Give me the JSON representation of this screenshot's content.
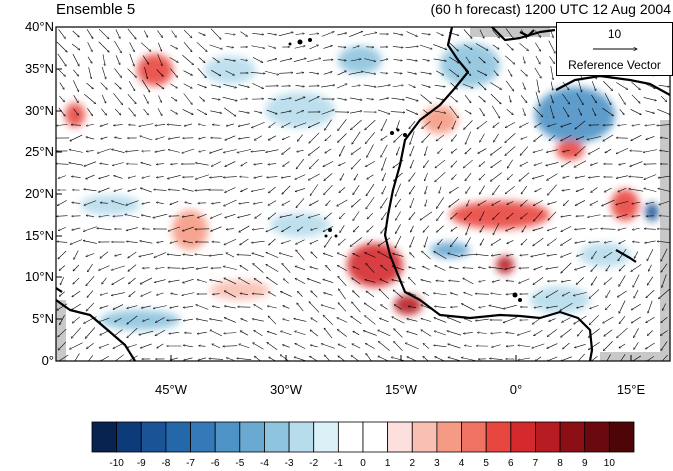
{
  "title_left": "Ensemble 5",
  "title_right": "(60 h forecast) 1200 UTC 12 Aug 2004",
  "lat_labels": [
    "40°N",
    "35°N",
    "30°N",
    "25°N",
    "20°N",
    "15°N",
    "10°N",
    "5°N",
    "0°"
  ],
  "lon_labels": [
    "45°W",
    "30°W",
    "15°W",
    "0°",
    "15°E"
  ],
  "reference_vector": {
    "magnitude": "10",
    "label": "Reference Vector"
  },
  "colorbar": {
    "labels": [
      "-10",
      "-9",
      "-8",
      "-7",
      "-6",
      "-5",
      "-4",
      "-3",
      "-2",
      "-1",
      "0",
      "1",
      "2",
      "3",
      "4",
      "5",
      "6",
      "7",
      "8",
      "9",
      "10"
    ],
    "colors": [
      "#08234f",
      "#0d3a78",
      "#1a5396",
      "#2468aa",
      "#3579b8",
      "#4d93c6",
      "#6aa9d2",
      "#8fc4de",
      "#b7dcec",
      "#dcf0f8",
      "#ffffff",
      "#ffffff",
      "#fde0dd",
      "#f9bfb2",
      "#f59b85",
      "#f07262",
      "#e8473f",
      "#d42a2d",
      "#b71c22",
      "#8c0f16",
      "#6a0a0f",
      "#4d0508"
    ]
  },
  "map": {
    "lat_range": [
      0,
      40
    ],
    "lon_range": [
      -61,
      19
    ],
    "field_colors": {
      "positive": "#e8473f",
      "negative": "#3579b8",
      "land": "#c8c8c8"
    }
  }
}
